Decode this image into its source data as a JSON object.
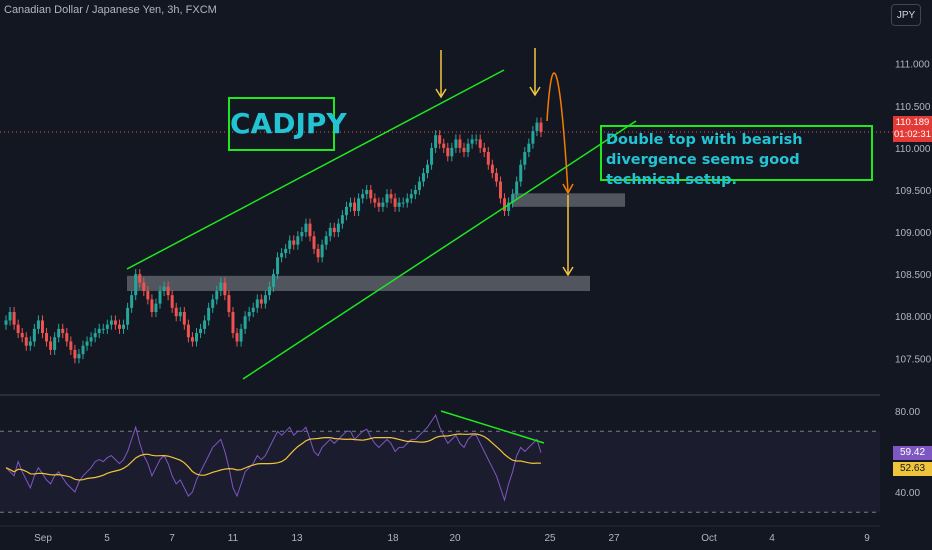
{
  "header": {
    "title": "Canadian Dollar / Japanese Yen, 3h, FXCM",
    "currency": "JPY"
  },
  "annotations": {
    "symbol_label": "CADJPY",
    "note": "Double top with bearish divergence seems good technical setup."
  },
  "price_badge": {
    "price": "110.189",
    "countdown": "01:02:31"
  },
  "rsi_badges": {
    "rsi": "59.42",
    "ma": "52.63"
  },
  "colors": {
    "background": "#131722",
    "up": "#26a69a",
    "down": "#ef5350",
    "trendline": "#1ee81e",
    "arrow": "#f5c542",
    "orange": "#f57c00",
    "rsi_line": "#7e57c2",
    "rsi_ma": "#f0c43a",
    "label_text": "#22c4d4"
  },
  "chart_data": [
    {
      "type": "candlestick",
      "title": "Canadian Dollar / Japanese Yen, 3h, FXCM",
      "ylim": [
        107.1,
        111.4
      ],
      "y_ticks": [
        "111.000",
        "110.500",
        "110.000",
        "109.500",
        "109.000",
        "108.500",
        "108.000",
        "107.500"
      ],
      "x_ticks": [
        "Sep",
        "5",
        "7",
        "11",
        "13",
        "18",
        "20",
        "25",
        "27",
        "Oct",
        "4",
        "9"
      ],
      "last_price": 110.189,
      "support_zones": [
        [
          108.3,
          108.48
        ],
        [
          109.3,
          109.46
        ]
      ],
      "closes": [
        107.95,
        108.05,
        107.9,
        107.8,
        107.75,
        107.65,
        107.7,
        107.85,
        107.95,
        107.8,
        107.7,
        107.6,
        107.75,
        107.85,
        107.8,
        107.7,
        107.6,
        107.5,
        107.55,
        107.65,
        107.7,
        107.75,
        107.8,
        107.85,
        107.85,
        107.9,
        107.95,
        107.9,
        107.85,
        107.9,
        108.1,
        108.25,
        108.5,
        108.4,
        108.3,
        108.2,
        108.05,
        108.15,
        108.3,
        108.35,
        108.25,
        108.1,
        108.0,
        108.05,
        107.9,
        107.75,
        107.7,
        107.8,
        107.85,
        107.95,
        108.1,
        108.2,
        108.3,
        108.4,
        108.25,
        108.05,
        107.8,
        107.7,
        107.85,
        108.0,
        108.05,
        108.1,
        108.2,
        108.15,
        108.25,
        108.35,
        108.5,
        108.7,
        108.75,
        108.8,
        108.9,
        108.85,
        108.95,
        109.0,
        109.1,
        108.95,
        108.8,
        108.7,
        108.85,
        108.95,
        109.05,
        109.0,
        109.1,
        109.2,
        109.3,
        109.35,
        109.25,
        109.4,
        109.45,
        109.5,
        109.4,
        109.35,
        109.3,
        109.35,
        109.45,
        109.4,
        109.3,
        109.35,
        109.35,
        109.4,
        109.45,
        109.5,
        109.6,
        109.7,
        109.8,
        110.0,
        110.15,
        110.05,
        110.0,
        109.9,
        110.0,
        110.1,
        110.0,
        109.95,
        110.05,
        110.1,
        110.1,
        110.0,
        109.95,
        109.8,
        109.7,
        109.6,
        109.4,
        109.25,
        109.35,
        109.45,
        109.6,
        109.8,
        109.95,
        110.05,
        110.2,
        110.3,
        110.189
      ],
      "rsi": [
        52,
        50,
        48,
        55,
        50,
        46,
        42,
        48,
        52,
        49,
        46,
        44,
        48,
        50,
        47,
        44,
        42,
        40,
        45,
        48,
        50,
        52,
        55,
        56,
        55,
        57,
        58,
        56,
        54,
        56,
        60,
        66,
        72,
        64,
        58,
        54,
        48,
        52,
        56,
        58,
        54,
        48,
        44,
        46,
        42,
        38,
        40,
        46,
        50,
        54,
        58,
        62,
        64,
        66,
        60,
        52,
        42,
        38,
        44,
        50,
        52,
        54,
        58,
        56,
        58,
        62,
        66,
        70,
        68,
        70,
        72,
        68,
        70,
        70,
        72,
        66,
        60,
        58,
        62,
        64,
        66,
        64,
        66,
        68,
        70,
        70,
        66,
        68,
        70,
        71,
        67,
        64,
        62,
        64,
        66,
        64,
        60,
        62,
        62,
        64,
        66,
        66,
        68,
        70,
        72,
        75,
        78,
        72,
        68,
        64,
        66,
        68,
        64,
        62,
        66,
        68,
        68,
        64,
        60,
        56,
        52,
        48,
        42,
        36,
        44,
        50,
        58,
        62,
        60,
        62,
        64,
        66,
        59.42
      ],
      "rsi_levels": [
        70,
        30
      ],
      "rsi_ma_last": 52.63
    }
  ]
}
